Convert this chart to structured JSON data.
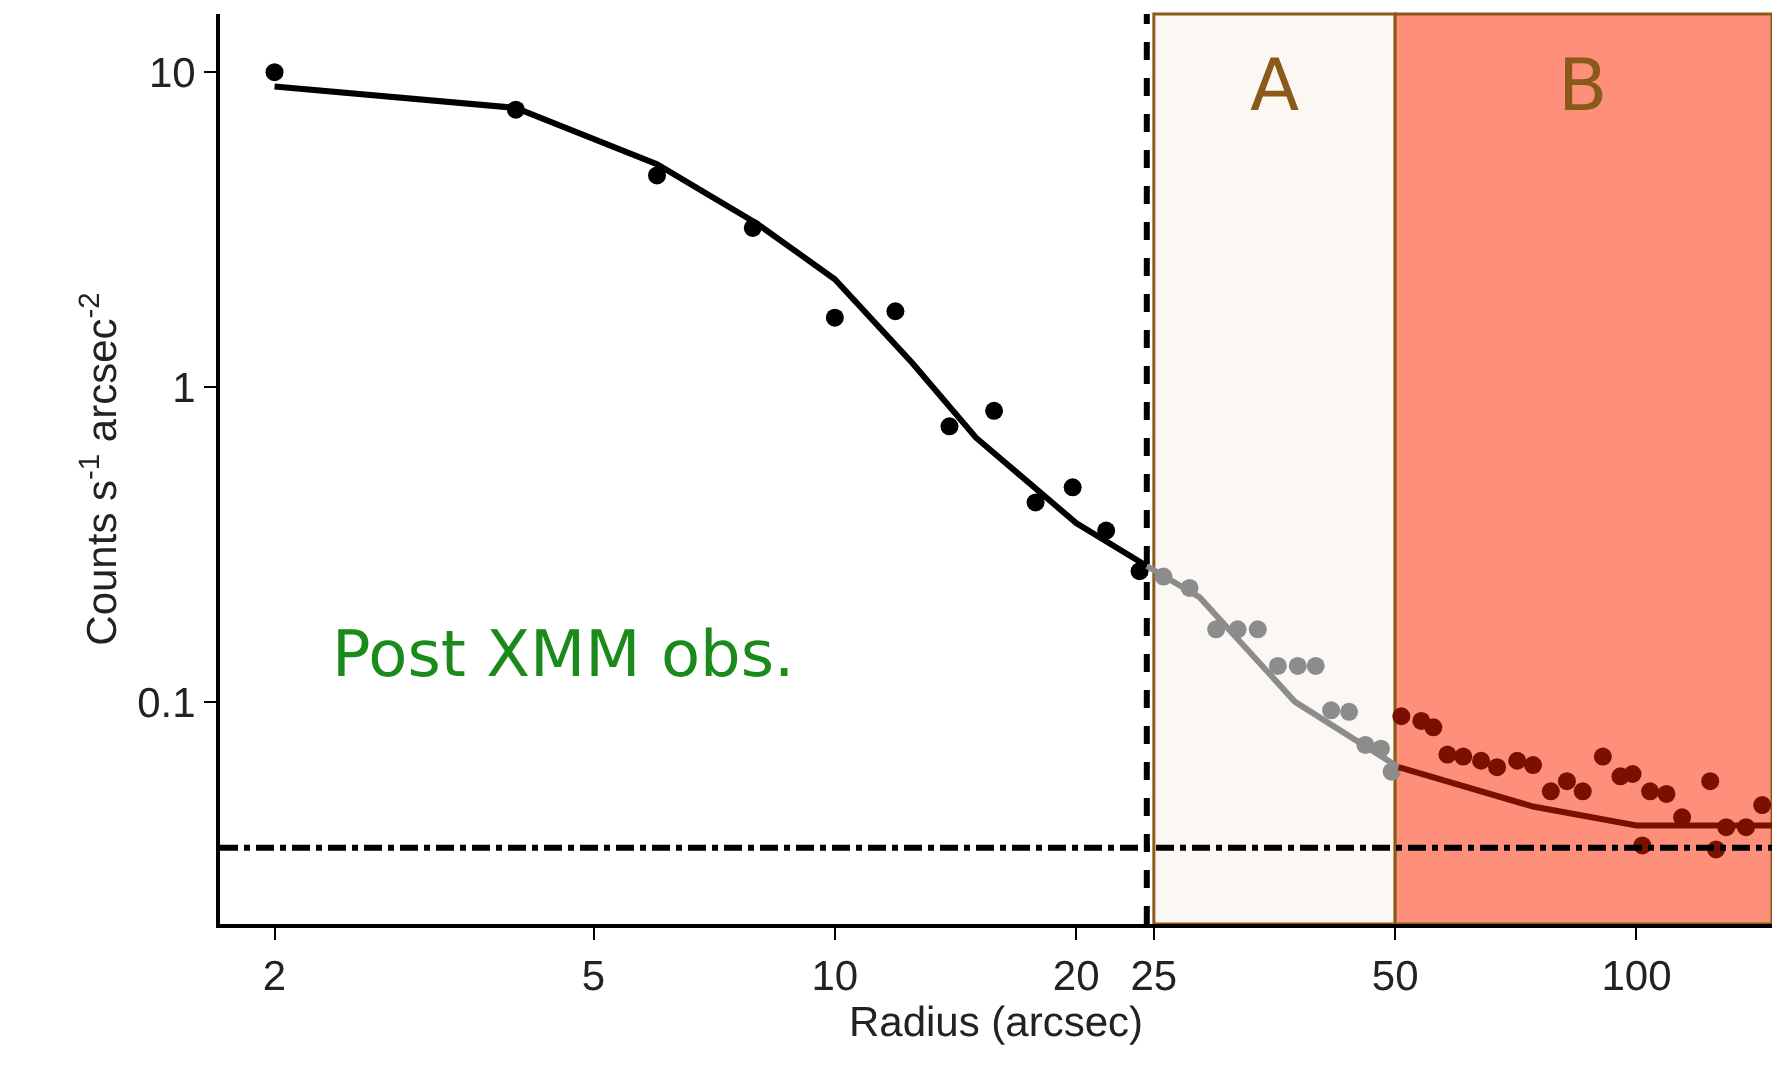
{
  "chart_data": {
    "type": "scatter",
    "xlabel": "Radius (arcsec)",
    "ylabel": "Counts s$^{-1}$ arcsec$^{-2}$",
    "log": "xy",
    "grid": false,
    "xlim": [
      1.71,
      147.6
    ],
    "xticks": [
      2,
      5,
      10,
      20,
      25,
      50,
      100
    ],
    "ylim": [
      0.0197,
      15.3
    ],
    "yticks": [
      0.1,
      1,
      10
    ],
    "series": [
      {
        "marker": "circle",
        "color": "#000000",
        "x": [
          2,
          4.0,
          6.0,
          7.9,
          10,
          11.9,
          13.9,
          15.8,
          17.8,
          19.8,
          21.8,
          24.0
        ],
        "values": [
          10,
          7.6,
          4.7,
          3.2,
          1.66,
          1.74,
          0.75,
          0.84,
          0.43,
          0.48,
          0.35,
          0.26
        ]
      },
      {
        "marker": "circle",
        "color": "#8c8c8c",
        "x": [
          25.7,
          27.7,
          29.9,
          31.8,
          33.7,
          35.7,
          37.8,
          39.8,
          41.6,
          43.8,
          45.9,
          48.0,
          49.5
        ],
        "values": [
          0.25,
          0.23,
          0.17,
          0.17,
          0.17,
          0.13,
          0.13,
          0.13,
          0.094,
          0.093,
          0.073,
          0.071,
          0.06
        ]
      },
      {
        "marker": "circle",
        "color": "#7a1000",
        "x": [
          50.9,
          53.9,
          55.8,
          58.1,
          60.8,
          64.0,
          67.0,
          71.0,
          74.3,
          78.2,
          81.9,
          85.7,
          90.8,
          95.5,
          98.9,
          101.7,
          104,
          109,
          114,
          123.6,
          125.7,
          129.4,
          137,
          143.5
        ],
        "values": [
          0.09,
          0.087,
          0.083,
          0.068,
          0.067,
          0.065,
          0.062,
          0.065,
          0.063,
          0.052,
          0.056,
          0.052,
          0.067,
          0.058,
          0.059,
          0.035,
          0.052,
          0.051,
          0.043,
          0.056,
          0.034,
          0.04,
          0.04,
          0.047
        ]
      },
      {
        "type": "line",
        "marker": "none",
        "line_style": "solid",
        "color": "#000000",
        "x": [
          2,
          4,
          6,
          8,
          10,
          12.5,
          15,
          20,
          24.5
        ],
        "values": [
          9.0,
          7.7,
          5.1,
          3.3,
          2.2,
          1.19,
          0.69,
          0.37,
          0.27
        ]
      },
      {
        "type": "line",
        "marker": "none",
        "line_style": "solid",
        "color": "#8c8c8c",
        "x": [
          24.5,
          28.5,
          37.5,
          50.5
        ],
        "values": [
          0.27,
          0.215,
          0.1,
          0.062
        ]
      },
      {
        "type": "line",
        "marker": "none",
        "line_style": "solid",
        "color": "#7a1000",
        "x": [
          50.5,
          74.3,
          100,
          147.6
        ],
        "values": [
          0.062,
          0.0465,
          0.0405,
          0.0405
        ]
      }
    ],
    "bands": [
      {
        "axis": "x",
        "from": 25,
        "to": 50,
        "label": "A",
        "color": "#fbf7f3"
      },
      {
        "axis": "x",
        "from": 50,
        "to": 147.6,
        "label": "B",
        "color": "#fe8f7a"
      }
    ],
    "ref_lines": [
      {
        "axis": "x",
        "value": 24.5,
        "line_style": "dashed",
        "color": "#000000"
      },
      {
        "axis": "y",
        "value": 0.0344,
        "line_style": "dashdot",
        "color": "#000000"
      }
    ],
    "annotations": [
      "Post XMM obs."
    ]
  }
}
